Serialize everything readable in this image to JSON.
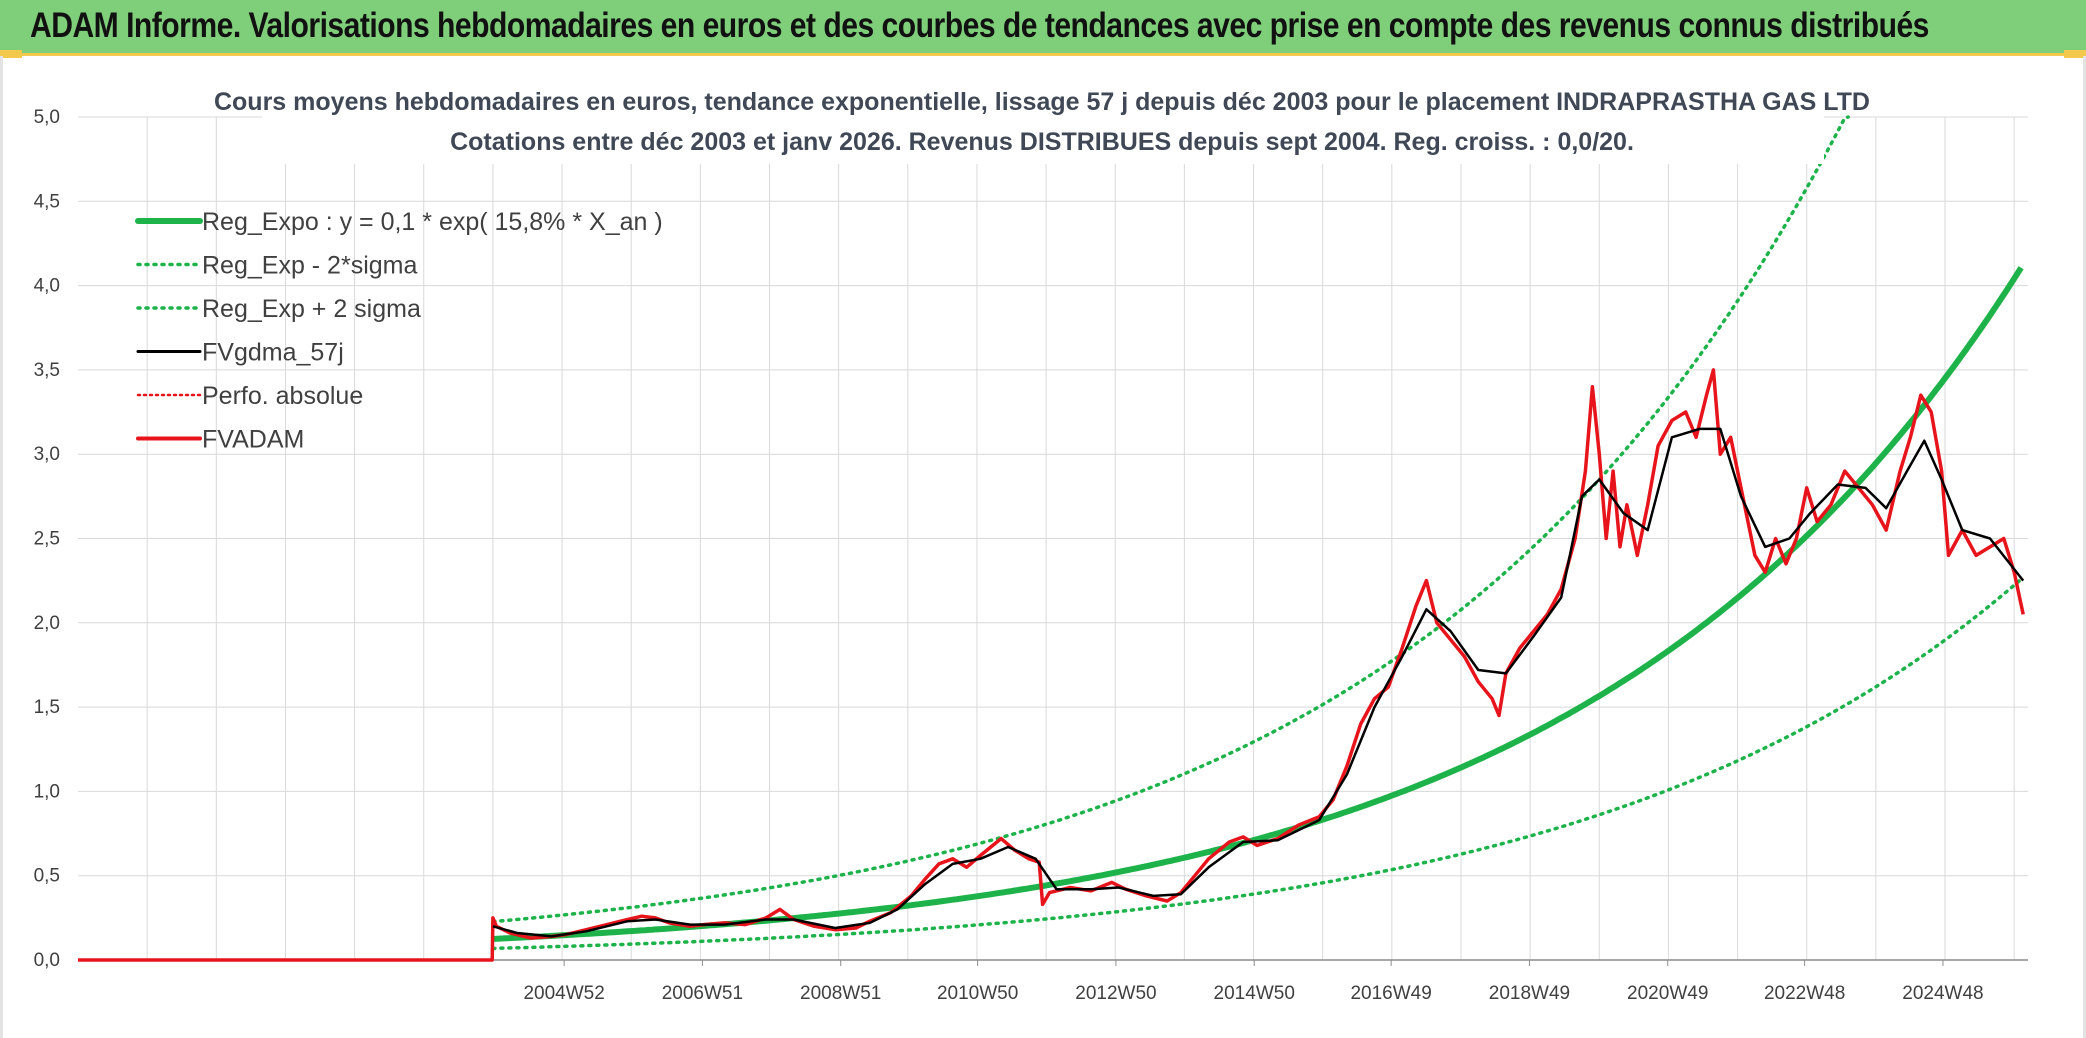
{
  "header": {
    "title": "ADAM Informe. Valorisations hebdomadaires en euros et des courbes de tendances avec prise en compte des revenus connus distribués"
  },
  "colors": {
    "banner": "#7fcf7a",
    "accent": "#f2c94c",
    "reg_expo": "#1db34a",
    "reg_bounds": "#1db34a",
    "fvgdma": "#000000",
    "fvadam": "#e8141b",
    "perfo": "#e8141b",
    "grid": "#d9d9d9"
  },
  "chart_data": {
    "type": "line",
    "title": "Cours moyens hebdomadaires en euros, tendance exponentielle, lissage 57 j depuis déc 2003 pour le placement INDRAPRASTHA GAS LTD",
    "subtitle": "Cotations entre déc 2003 et janv 2026. Revenus DISTRIBUES depuis sept 2004. Reg. croiss. : 0,0/20.",
    "xlabel": "",
    "ylabel": "",
    "ylim": [
      0,
      5
    ],
    "y_ticks": [
      "0,0",
      "0,5",
      "1,0",
      "1,5",
      "2,0",
      "2,5",
      "3,0",
      "3,5",
      "4,0",
      "4,5",
      "5,0"
    ],
    "x_ticks": [
      "2004W52",
      "2006W51",
      "2008W51",
      "2010W50",
      "2012W50",
      "2014W50",
      "2016W49",
      "2018W49",
      "2020W49",
      "2022W48",
      "2024W48"
    ],
    "x_tick_years": [
      2004.98,
      2006.98,
      2008.98,
      2010.96,
      2012.96,
      2014.96,
      2016.94,
      2018.94,
      2020.94,
      2022.92,
      2024.92
    ],
    "xlim": [
      1997.95,
      2026.15
    ],
    "grid": true,
    "legend_position": "top-left",
    "legend": [
      {
        "label": "Reg_Expo : y = 0,1 * exp( 15,8% *  X_an )",
        "style": "solid-thick",
        "color": "#1db34a"
      },
      {
        "label": "Reg_Exp - 2*sigma",
        "style": "dotted",
        "color": "#1db34a"
      },
      {
        "label": "Reg_Exp + 2 sigma",
        "style": "dotted",
        "color": "#1db34a"
      },
      {
        "label": "FVgdma_57j",
        "style": "solid-thin",
        "color": "#000000"
      },
      {
        "label": "Perfo. absolue",
        "style": "dotted-thin",
        "color": "#e8141b"
      },
      {
        "label": "FVADAM",
        "style": "solid",
        "color": "#e8141b"
      }
    ],
    "start_year": 2003.95,
    "reg_expo": {
      "a": 0.125,
      "rate": 0.158
    },
    "band_factor": {
      "upper": 1.82,
      "lower": 0.55
    },
    "series": [
      {
        "name": "FVADAM",
        "points": [
          [
            1997.95,
            0
          ],
          [
            2003.94,
            0
          ],
          [
            2003.95,
            0.25
          ],
          [
            2004.0,
            0.2
          ],
          [
            2004.2,
            0.16
          ],
          [
            2004.5,
            0.13
          ],
          [
            2004.8,
            0.14
          ],
          [
            2005.0,
            0.15
          ],
          [
            2005.3,
            0.18
          ],
          [
            2005.6,
            0.21
          ],
          [
            2005.9,
            0.24
          ],
          [
            2006.1,
            0.26
          ],
          [
            2006.3,
            0.25
          ],
          [
            2006.5,
            0.22
          ],
          [
            2006.8,
            0.2
          ],
          [
            2007.0,
            0.21
          ],
          [
            2007.3,
            0.22
          ],
          [
            2007.6,
            0.21
          ],
          [
            2007.9,
            0.25
          ],
          [
            2008.1,
            0.3
          ],
          [
            2008.3,
            0.24
          ],
          [
            2008.6,
            0.2
          ],
          [
            2008.9,
            0.18
          ],
          [
            2009.2,
            0.19
          ],
          [
            2009.4,
            0.23
          ],
          [
            2009.7,
            0.28
          ],
          [
            2010.0,
            0.38
          ],
          [
            2010.2,
            0.48
          ],
          [
            2010.4,
            0.57
          ],
          [
            2010.6,
            0.6
          ],
          [
            2010.8,
            0.55
          ],
          [
            2011.0,
            0.62
          ],
          [
            2011.3,
            0.72
          ],
          [
            2011.5,
            0.65
          ],
          [
            2011.7,
            0.6
          ],
          [
            2011.85,
            0.58
          ],
          [
            2011.9,
            0.33
          ],
          [
            2012.0,
            0.4
          ],
          [
            2012.3,
            0.43
          ],
          [
            2012.6,
            0.41
          ],
          [
            2012.9,
            0.46
          ],
          [
            2013.1,
            0.42
          ],
          [
            2013.4,
            0.38
          ],
          [
            2013.7,
            0.35
          ],
          [
            2013.9,
            0.4
          ],
          [
            2014.1,
            0.5
          ],
          [
            2014.3,
            0.6
          ],
          [
            2014.6,
            0.7
          ],
          [
            2014.8,
            0.73
          ],
          [
            2015.0,
            0.68
          ],
          [
            2015.3,
            0.72
          ],
          [
            2015.6,
            0.8
          ],
          [
            2015.9,
            0.85
          ],
          [
            2016.1,
            0.95
          ],
          [
            2016.3,
            1.15
          ],
          [
            2016.5,
            1.4
          ],
          [
            2016.7,
            1.55
          ],
          [
            2016.9,
            1.62
          ],
          [
            2017.1,
            1.85
          ],
          [
            2017.3,
            2.1
          ],
          [
            2017.45,
            2.25
          ],
          [
            2017.6,
            2.0
          ],
          [
            2017.8,
            1.9
          ],
          [
            2018.0,
            1.8
          ],
          [
            2018.2,
            1.65
          ],
          [
            2018.4,
            1.55
          ],
          [
            2018.5,
            1.45
          ],
          [
            2018.6,
            1.7
          ],
          [
            2018.8,
            1.85
          ],
          [
            2019.0,
            1.95
          ],
          [
            2019.2,
            2.05
          ],
          [
            2019.4,
            2.2
          ],
          [
            2019.6,
            2.5
          ],
          [
            2019.75,
            2.9
          ],
          [
            2019.85,
            3.4
          ],
          [
            2019.95,
            3.0
          ],
          [
            2020.05,
            2.5
          ],
          [
            2020.15,
            2.9
          ],
          [
            2020.25,
            2.45
          ],
          [
            2020.35,
            2.7
          ],
          [
            2020.5,
            2.4
          ],
          [
            2020.65,
            2.7
          ],
          [
            2020.8,
            3.05
          ],
          [
            2021.0,
            3.2
          ],
          [
            2021.2,
            3.25
          ],
          [
            2021.35,
            3.1
          ],
          [
            2021.5,
            3.35
          ],
          [
            2021.6,
            3.5
          ],
          [
            2021.7,
            3.0
          ],
          [
            2021.85,
            3.1
          ],
          [
            2022.0,
            2.8
          ],
          [
            2022.2,
            2.4
          ],
          [
            2022.35,
            2.3
          ],
          [
            2022.5,
            2.5
          ],
          [
            2022.65,
            2.35
          ],
          [
            2022.8,
            2.5
          ],
          [
            2022.95,
            2.8
          ],
          [
            2023.1,
            2.6
          ],
          [
            2023.3,
            2.7
          ],
          [
            2023.5,
            2.9
          ],
          [
            2023.7,
            2.8
          ],
          [
            2023.9,
            2.7
          ],
          [
            2024.1,
            2.55
          ],
          [
            2024.3,
            2.9
          ],
          [
            2024.45,
            3.1
          ],
          [
            2024.6,
            3.35
          ],
          [
            2024.75,
            3.25
          ],
          [
            2024.9,
            2.9
          ],
          [
            2025.0,
            2.4
          ],
          [
            2025.2,
            2.55
          ],
          [
            2025.4,
            2.4
          ],
          [
            2025.6,
            2.45
          ],
          [
            2025.8,
            2.5
          ],
          [
            2025.95,
            2.3
          ],
          [
            2026.08,
            2.05
          ]
        ]
      },
      {
        "name": "FVgdma_57j",
        "points": [
          [
            2003.95,
            0.2
          ],
          [
            2004.3,
            0.16
          ],
          [
            2004.8,
            0.14
          ],
          [
            2005.3,
            0.17
          ],
          [
            2005.9,
            0.23
          ],
          [
            2006.3,
            0.24
          ],
          [
            2006.8,
            0.21
          ],
          [
            2007.3,
            0.21
          ],
          [
            2007.9,
            0.24
          ],
          [
            2008.3,
            0.24
          ],
          [
            2008.9,
            0.19
          ],
          [
            2009.4,
            0.22
          ],
          [
            2009.8,
            0.3
          ],
          [
            2010.2,
            0.45
          ],
          [
            2010.6,
            0.57
          ],
          [
            2011.0,
            0.6
          ],
          [
            2011.4,
            0.67
          ],
          [
            2011.8,
            0.6
          ],
          [
            2012.1,
            0.42
          ],
          [
            2012.6,
            0.42
          ],
          [
            2013.0,
            0.43
          ],
          [
            2013.5,
            0.38
          ],
          [
            2013.9,
            0.39
          ],
          [
            2014.3,
            0.55
          ],
          [
            2014.8,
            0.7
          ],
          [
            2015.3,
            0.71
          ],
          [
            2015.9,
            0.83
          ],
          [
            2016.3,
            1.1
          ],
          [
            2016.7,
            1.5
          ],
          [
            2017.1,
            1.8
          ],
          [
            2017.45,
            2.08
          ],
          [
            2017.8,
            1.95
          ],
          [
            2018.2,
            1.72
          ],
          [
            2018.6,
            1.7
          ],
          [
            2019.0,
            1.92
          ],
          [
            2019.4,
            2.15
          ],
          [
            2019.7,
            2.75
          ],
          [
            2019.95,
            2.85
          ],
          [
            2020.3,
            2.65
          ],
          [
            2020.65,
            2.55
          ],
          [
            2021.0,
            3.1
          ],
          [
            2021.4,
            3.15
          ],
          [
            2021.7,
            3.15
          ],
          [
            2022.0,
            2.75
          ],
          [
            2022.35,
            2.45
          ],
          [
            2022.7,
            2.5
          ],
          [
            2023.0,
            2.65
          ],
          [
            2023.4,
            2.82
          ],
          [
            2023.8,
            2.8
          ],
          [
            2024.1,
            2.68
          ],
          [
            2024.4,
            2.9
          ],
          [
            2024.65,
            3.08
          ],
          [
            2024.9,
            2.85
          ],
          [
            2025.2,
            2.55
          ],
          [
            2025.6,
            2.5
          ],
          [
            2026.08,
            2.25
          ]
        ]
      }
    ]
  }
}
